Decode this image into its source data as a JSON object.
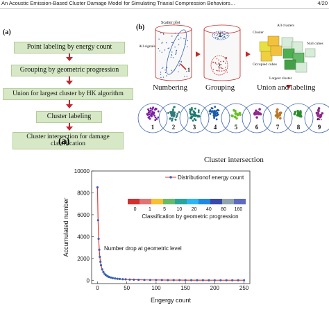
{
  "header": {
    "title": "An Acoustic Emission-Based Cluster Damage Model for Simulating Triaxial Compression Behaviors…",
    "page": "4/20"
  },
  "panel_a": {
    "label": "(a)",
    "steps": [
      "Point labeling by energy count",
      "Grouping by geometric progression",
      "Union for largest cluster by HK algorithm",
      "Cluster labeling",
      "Cluster intersection for damage classification"
    ],
    "overlay_label": "(a)"
  },
  "panel_b": {
    "label": "(b)",
    "scatter_plot": "Scatter plot",
    "all_signals": "All signals",
    "all_clusters": "All clusters",
    "cluster": "Cluster",
    "null_cubes": "Null cubes",
    "occupied_cubes": "Occupied cubes",
    "largest_cluster": "Largest cluster",
    "marker_one": "1",
    "marker_group_one": "1",
    "marker_group_two": "2",
    "captions": {
      "numbering": "Numbering",
      "grouping": "Grouping",
      "union": "Union and labeling"
    },
    "cluster_numbers": [
      "1",
      "2",
      "3",
      "4",
      "5",
      "6",
      "7",
      "8",
      "9"
    ],
    "ellipsis": "...",
    "cluster_colors": [
      "#7b1fa2",
      "#2e7d7a",
      "#1b7a6e",
      "#1e5aa8",
      "#6abf2a",
      "#8e2a8a",
      "#b8782a",
      "#2a8a2a",
      "#8e2a8a"
    ],
    "intersection_caption": "Cluster intersection"
  },
  "chart_data": {
    "type": "line",
    "legend_entry": "Distributionof energy count",
    "legend_position": "top-right",
    "xlabel": "Engergy count",
    "ylabel": "Accumulated number",
    "xlim": [
      -10,
      260
    ],
    "ylim": [
      -300,
      10000
    ],
    "x_ticks": [
      "0",
      "50",
      "100",
      "150",
      "200",
      "250"
    ],
    "y_ticks": [
      "0",
      "2000",
      "4000",
      "6000",
      "8000",
      "10000"
    ],
    "series": [
      {
        "color": "#3a63b0",
        "line_color": "#e53935",
        "x": [
          0,
          1,
          2,
          3,
          4,
          5,
          6,
          8,
          10,
          12,
          14,
          16,
          18,
          20,
          23,
          26,
          30,
          34,
          38,
          43,
          48,
          55,
          62,
          70,
          80,
          90,
          100,
          110,
          120,
          130,
          140,
          150,
          160,
          170,
          180,
          190,
          200,
          210,
          220,
          230,
          240,
          250
        ],
        "y": [
          8500,
          5500,
          3800,
          2800,
          2150,
          1700,
          1380,
          1000,
          760,
          600,
          490,
          410,
          350,
          300,
          250,
          210,
          170,
          140,
          120,
          100,
          85,
          70,
          58,
          48,
          40,
          33,
          28,
          24,
          20,
          18,
          15,
          13,
          11,
          10,
          9,
          8,
          7,
          6,
          5,
          5,
          4,
          4
        ]
      }
    ],
    "annotation": "Number drop at geometric level",
    "inset": {
      "tick_labels": [
        "0",
        "1",
        "5",
        "10",
        "20",
        "40",
        "80",
        "160"
      ],
      "colors": [
        "#d32f2f",
        "#e57373",
        "#fbc02d",
        "#66bb6a",
        "#26a69a",
        "#29b6f6",
        "#1e88e5",
        "#3949ab",
        "#90a4ae",
        "#5c6bc0"
      ],
      "caption": "Classification by geometric progression"
    }
  }
}
